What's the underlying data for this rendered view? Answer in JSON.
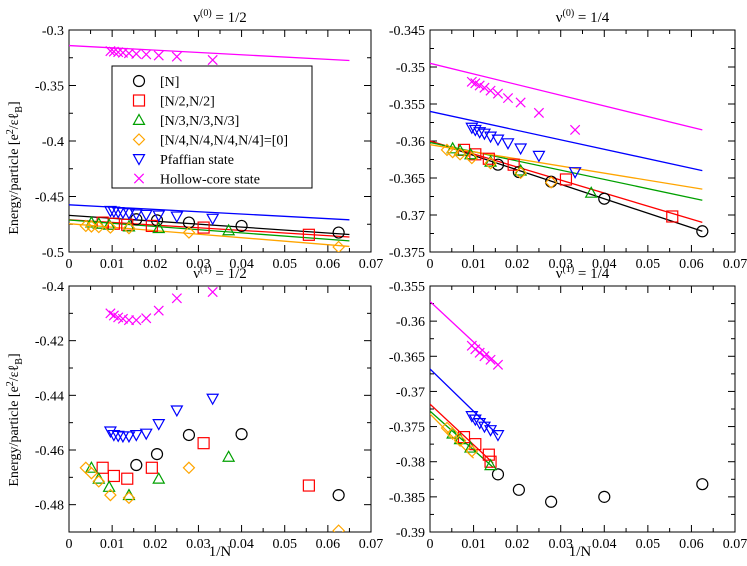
{
  "figure": {
    "xlabel": "1/N",
    "ylabel_main": "Energy/particle [e",
    "ylabel_sup": "2",
    "ylabel_end": "/εℓ",
    "ylabel_sub": "B",
    "ylabel_close": "]"
  },
  "legend": [
    {
      "label": "[N]",
      "marker": "circle",
      "color": "#000000"
    },
    {
      "label": "[N/2,N/2]",
      "marker": "square",
      "color": "#ff0000"
    },
    {
      "label": "[N/3,N/3,N/3]",
      "marker": "triangle-up",
      "color": "#00a000"
    },
    {
      "label": "[N/4,N/4,N/4,N/4]=[0]",
      "marker": "diamond",
      "color": "#ffa500"
    },
    {
      "label": "Pfaffian state",
      "marker": "triangle-down",
      "color": "#0000ff"
    },
    {
      "label": "Hollow-core state",
      "marker": "x",
      "color": "#ff00ff"
    }
  ],
  "chart_data": [
    {
      "type": "scatter",
      "title_base": "ν",
      "title_sup": "(0)",
      "title_rest": " = 1/2",
      "xlim": [
        0,
        0.07
      ],
      "ylim": [
        -0.5,
        -0.3
      ],
      "xticks": [
        "0",
        "0.01",
        "0.02",
        "0.03",
        "0.04",
        "0.05",
        "0.06",
        "0.07"
      ],
      "yticks": [
        {
          "v": -0.5,
          "label": "-0.5"
        },
        {
          "v": -0.45,
          "label": "-0.45"
        },
        {
          "v": -0.4,
          "label": "-0.4"
        },
        {
          "v": -0.35,
          "label": "-0.35"
        },
        {
          "v": -0.3,
          "label": "-0.3"
        }
      ],
      "series": [
        {
          "name": "[N]",
          "x": [
            0.0156,
            0.0204,
            0.0278,
            0.04,
            0.0625
          ],
          "y": [
            -0.4705,
            -0.4715,
            -0.4735,
            -0.4765,
            -0.4825
          ],
          "line": [
            -0.467,
            -0.4842
          ]
        },
        {
          "name": "[N/2,N/2]",
          "x": [
            0.0078,
            0.0104,
            0.0135,
            0.0192,
            0.0312,
            0.0556
          ],
          "y": [
            -0.4735,
            -0.4745,
            -0.4755,
            -0.4765,
            -0.478,
            -0.4845
          ],
          "line": [
            -0.471,
            -0.4865
          ]
        },
        {
          "name": "[N/3,N/3,N/3]",
          "x": [
            0.0052,
            0.0069,
            0.0093,
            0.0139,
            0.0208,
            0.037
          ],
          "y": [
            -0.4735,
            -0.4745,
            -0.4755,
            -0.477,
            -0.4785,
            -0.4805
          ],
          "line": [
            -0.4712,
            -0.49
          ]
        },
        {
          "name": "[N/4,N/4,N/4,N/4]=[0]",
          "x": [
            0.0039,
            0.0052,
            0.0069,
            0.0096,
            0.0139,
            0.0278,
            0.0625
          ],
          "y": [
            -0.4765,
            -0.477,
            -0.4775,
            -0.478,
            -0.4785,
            -0.4825,
            -0.4955
          ],
          "line": [
            -0.4745,
            -0.495
          ]
        },
        {
          "name": "Pfaffian state",
          "x": [
            0.0096,
            0.0104,
            0.0114,
            0.0125,
            0.0139,
            0.0156,
            0.0179,
            0.0208,
            0.025,
            0.0333
          ],
          "y": [
            -0.463,
            -0.4635,
            -0.464,
            -0.4645,
            -0.465,
            -0.466,
            -0.4665,
            -0.467,
            -0.468,
            -0.47
          ],
          "line": [
            -0.4575,
            -0.471
          ]
        },
        {
          "name": "Hollow-core state",
          "x": [
            0.0096,
            0.0104,
            0.0114,
            0.0125,
            0.0139,
            0.0156,
            0.0179,
            0.0208,
            0.025,
            0.0333
          ],
          "y": [
            -0.319,
            -0.3195,
            -0.32,
            -0.3205,
            -0.321,
            -0.3215,
            -0.322,
            -0.323,
            -0.324,
            -0.327
          ],
          "line": [
            -0.314,
            -0.3275
          ]
        }
      ],
      "line_x": [
        0,
        0.065
      ]
    },
    {
      "type": "scatter",
      "title_base": "ν",
      "title_sup": "(0)",
      "title_rest": " = 1/4",
      "xlim": [
        0,
        0.07
      ],
      "ylim": [
        -0.375,
        -0.345
      ],
      "xticks": [
        "0",
        "0.01",
        "0.02",
        "0.03",
        "0.04",
        "0.05",
        "0.06",
        "0.07"
      ],
      "yticks": [
        {
          "v": -0.375,
          "label": "-0.375"
        },
        {
          "v": -0.37,
          "label": "-0.37"
        },
        {
          "v": -0.365,
          "label": "-0.365"
        },
        {
          "v": -0.36,
          "label": "-0.36"
        },
        {
          "v": -0.355,
          "label": "-0.355"
        },
        {
          "v": -0.35,
          "label": "-0.35"
        },
        {
          "v": -0.345,
          "label": "-0.345"
        }
      ],
      "series": [
        {
          "name": "[N]",
          "x": [
            0.0156,
            0.0204,
            0.0278,
            0.04,
            0.0625
          ],
          "y": [
            -0.3632,
            -0.3642,
            -0.3655,
            -0.3678,
            -0.3722
          ],
          "line": [
            -0.36,
            -0.3722
          ]
        },
        {
          "name": "[N/2,N/2]",
          "x": [
            0.0078,
            0.0104,
            0.0135,
            0.0192,
            0.0312,
            0.0556
          ],
          "y": [
            -0.3612,
            -0.3618,
            -0.3624,
            -0.3632,
            -0.3652,
            -0.3702
          ],
          "line": [
            -0.36,
            -0.371
          ]
        },
        {
          "name": "[N/3,N/3,N/3]",
          "x": [
            0.0052,
            0.0069,
            0.0093,
            0.0139,
            0.0208,
            0.037
          ],
          "y": [
            -0.361,
            -0.3613,
            -0.3618,
            -0.3628,
            -0.364,
            -0.367
          ],
          "line": [
            -0.3602,
            -0.368
          ]
        },
        {
          "name": "[N/4,N/4,N/4,N/4]=[0]",
          "x": [
            0.0039,
            0.0052,
            0.0069,
            0.0096,
            0.0139,
            0.0208,
            0.0278
          ],
          "y": [
            -0.3612,
            -0.3615,
            -0.3618,
            -0.3623,
            -0.363,
            -0.3643,
            -0.3656
          ],
          "line": [
            -0.3605,
            -0.3665
          ]
        },
        {
          "name": "Pfaffian state",
          "x": [
            0.0096,
            0.0104,
            0.0114,
            0.0125,
            0.0139,
            0.0156,
            0.0179,
            0.0208,
            0.025,
            0.0333
          ],
          "y": [
            -0.3582,
            -0.3585,
            -0.3588,
            -0.359,
            -0.3594,
            -0.3598,
            -0.3603,
            -0.361,
            -0.362,
            -0.3642
          ],
          "line": [
            -0.356,
            -0.364
          ]
        },
        {
          "name": "Hollow-core state",
          "x": [
            0.0096,
            0.0104,
            0.0114,
            0.0125,
            0.0139,
            0.0156,
            0.0179,
            0.0208,
            0.025,
            0.0333
          ],
          "y": [
            -0.352,
            -0.3522,
            -0.3525,
            -0.3528,
            -0.3532,
            -0.3536,
            -0.3542,
            -0.3548,
            -0.3562,
            -0.3585
          ],
          "line": [
            -0.3495,
            -0.3585
          ]
        }
      ],
      "line_x": [
        0,
        0.0625
      ]
    },
    {
      "type": "scatter",
      "title_base": "ν",
      "title_sup": "(1)",
      "title_rest": " = 1/2",
      "xlim": [
        0,
        0.07
      ],
      "ylim": [
        -0.49,
        -0.4
      ],
      "xticks": [
        "0",
        "0.01",
        "0.02",
        "0.03",
        "0.04",
        "0.05",
        "0.06",
        "0.07"
      ],
      "yticks": [
        {
          "v": -0.48,
          "label": "-0.48"
        },
        {
          "v": -0.46,
          "label": "-0.46"
        },
        {
          "v": -0.44,
          "label": "-0.44"
        },
        {
          "v": -0.42,
          "label": "-0.42"
        },
        {
          "v": -0.4,
          "label": "-0.4"
        }
      ],
      "series": [
        {
          "name": "[N]",
          "x": [
            0.0156,
            0.0204,
            0.0278,
            0.04,
            0.0625
          ],
          "y": [
            -0.4655,
            -0.4615,
            -0.4545,
            -0.4542,
            -0.4765
          ]
        },
        {
          "name": "[N/2,N/2]",
          "x": [
            0.0078,
            0.0104,
            0.0135,
            0.0192,
            0.0312,
            0.0556
          ],
          "y": [
            -0.4665,
            -0.4695,
            -0.4705,
            -0.4665,
            -0.4575,
            -0.473
          ]
        },
        {
          "name": "[N/3,N/3,N/3]",
          "x": [
            0.0052,
            0.0069,
            0.0093,
            0.0139,
            0.0208,
            0.037
          ],
          "y": [
            -0.4665,
            -0.4705,
            -0.4735,
            -0.4765,
            -0.4705,
            -0.4625
          ]
        },
        {
          "name": "[N/4,N/4,N/4,N/4]=[0]",
          "x": [
            0.0039,
            0.0052,
            0.0069,
            0.0096,
            0.0139,
            0.0278,
            0.0625
          ],
          "y": [
            -0.4665,
            -0.4685,
            -0.4715,
            -0.4765,
            -0.4775,
            -0.4665,
            -0.4895
          ]
        },
        {
          "name": "Pfaffian state",
          "x": [
            0.0096,
            0.0104,
            0.0114,
            0.0125,
            0.0139,
            0.0156,
            0.0179,
            0.0208,
            0.025,
            0.0333
          ],
          "y": [
            -0.4532,
            -0.4545,
            -0.4548,
            -0.455,
            -0.455,
            -0.4545,
            -0.454,
            -0.4505,
            -0.4455,
            -0.4412
          ]
        },
        {
          "name": "Hollow-core state",
          "x": [
            0.0096,
            0.0104,
            0.0114,
            0.0125,
            0.0139,
            0.0156,
            0.0179,
            0.0208,
            0.025,
            0.0333
          ],
          "y": [
            -0.41,
            -0.4108,
            -0.4115,
            -0.412,
            -0.4125,
            -0.4125,
            -0.4118,
            -0.409,
            -0.4045,
            -0.4022
          ]
        }
      ]
    },
    {
      "type": "scatter",
      "title_base": "ν",
      "title_sup": "(1)",
      "title_rest": " = 1/4",
      "xlim": [
        0,
        0.07
      ],
      "ylim": [
        -0.39,
        -0.355
      ],
      "xticks": [
        "0",
        "0.01",
        "0.02",
        "0.03",
        "0.04",
        "0.05",
        "0.06",
        "0.07"
      ],
      "yticks": [
        {
          "v": -0.39,
          "label": "-0.39"
        },
        {
          "v": -0.385,
          "label": "-0.385"
        },
        {
          "v": -0.38,
          "label": "-0.38"
        },
        {
          "v": -0.375,
          "label": "-0.375"
        },
        {
          "v": -0.37,
          "label": "-0.37"
        },
        {
          "v": -0.365,
          "label": "-0.365"
        },
        {
          "v": -0.36,
          "label": "-0.36"
        },
        {
          "v": -0.355,
          "label": "-0.355"
        }
      ],
      "series": [
        {
          "name": "[N]",
          "x": [
            0.0156,
            0.0204,
            0.0278,
            0.04,
            0.0625
          ],
          "y": [
            -0.3818,
            -0.384,
            -0.3857,
            -0.385,
            -0.3832
          ]
        },
        {
          "name": "[N/2,N/2]",
          "x": [
            0.0078,
            0.0104,
            0.0135,
            0.0139
          ],
          "y": [
            -0.3765,
            -0.3775,
            -0.379,
            -0.38
          ],
          "line": [
            -0.3718,
            -0.3802
          ],
          "line_x": [
            0,
            0.0145
          ]
        },
        {
          "name": "[N/3,N/3,N/3]",
          "x": [
            0.0052,
            0.0069,
            0.0093,
            0.0139
          ],
          "y": [
            -0.376,
            -0.3768,
            -0.378,
            -0.3805
          ],
          "line": [
            -0.3728,
            -0.3808
          ],
          "line_x": [
            0,
            0.0145
          ]
        },
        {
          "name": "[N/4,N/4,N/4,N/4]=[0]",
          "x": [
            0.0039,
            0.0052,
            0.0069,
            0.0096
          ],
          "y": [
            -0.3752,
            -0.376,
            -0.377,
            -0.3785
          ],
          "line": [
            -0.3732,
            -0.3795
          ],
          "line_x": [
            0,
            0.01
          ]
        },
        {
          "name": "Pfaffian state",
          "x": [
            0.0096,
            0.0104,
            0.0114,
            0.0125,
            0.0139,
            0.0156
          ],
          "y": [
            -0.3735,
            -0.374,
            -0.3745,
            -0.375,
            -0.3755,
            -0.3762
          ],
          "line": [
            -0.3668,
            -0.3762
          ],
          "line_x": [
            0,
            0.0156
          ]
        },
        {
          "name": "Hollow-core state",
          "x": [
            0.0096,
            0.0104,
            0.0114,
            0.0125,
            0.0139,
            0.0156
          ],
          "y": [
            -0.3635,
            -0.364,
            -0.3645,
            -0.365,
            -0.3655,
            -0.3662
          ],
          "line": [
            -0.3572,
            -0.3662
          ],
          "line_x": [
            0,
            0.0156
          ]
        }
      ]
    }
  ]
}
